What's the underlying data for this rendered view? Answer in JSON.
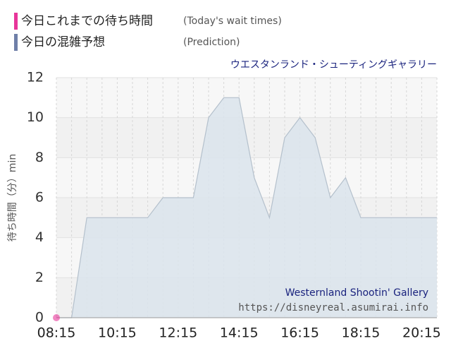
{
  "chart_data": {
    "type": "area",
    "title": "ウエスタンランド・シューティングギャラリー",
    "y_label": "待ち時間（分）min",
    "series": [
      {
        "name": "今日これまでの待ち時間",
        "note": "(Today's wait times)",
        "color": "#e8359a",
        "x": [
          "08:15"
        ],
        "values": [
          0
        ]
      },
      {
        "name": "今日の混雑予想",
        "note": "(Prediction)",
        "color": "#6f7fa8",
        "fill": "#dbe4ec",
        "line_color": "#b4c0cc",
        "x": [
          "08:15",
          "08:45",
          "09:15",
          "09:45",
          "10:15",
          "10:45",
          "11:15",
          "11:45",
          "12:15",
          "12:45",
          "13:15",
          "13:45",
          "14:15",
          "14:45",
          "15:15",
          "15:45",
          "16:15",
          "16:45",
          "17:15",
          "17:45",
          "18:15",
          "18:45",
          "19:15",
          "19:45",
          "20:15",
          "20:45"
        ],
        "values": [
          0,
          0,
          5,
          5,
          5,
          5,
          5,
          6,
          6,
          6,
          10,
          11,
          11,
          7,
          5,
          9,
          10,
          9,
          6,
          7,
          5,
          5,
          5,
          5,
          5,
          5
        ]
      }
    ],
    "xlim": [
      "08:15",
      "20:45"
    ],
    "xticks": [
      "08:15",
      "10:15",
      "12:15",
      "14:15",
      "16:15",
      "18:15",
      "20:15"
    ],
    "ylim": [
      0,
      12
    ],
    "yticks": [
      0,
      2,
      4,
      6,
      8,
      10,
      12
    ],
    "grid": true,
    "annotations": [
      "Westernland Shootin' Gallery",
      "https://disneyreal.asumirai.info"
    ]
  }
}
